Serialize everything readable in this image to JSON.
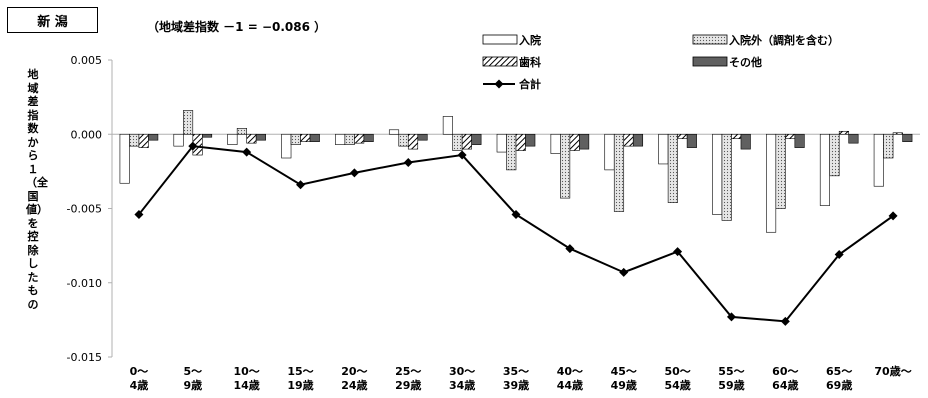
{
  "region": "新 潟",
  "subtitle": "（地域差指数 －1 = −0.086 ）",
  "colors": {
    "inpatient": "#ffffff",
    "outpatient": "#dcdcdc",
    "dental": "#ffffff",
    "other": "#606060",
    "total": "#000000",
    "axis": "#b0b0b0"
  },
  "chart_data": {
    "type": "bar",
    "ylabel": "地域差指数から１（全国値）を控除したもの",
    "ylim": [
      -0.015,
      0.005
    ],
    "yticks": [
      "0.005",
      "0.000",
      "-0.005",
      "-0.010",
      "-0.015"
    ],
    "ytick_values": [
      0.005,
      0.0,
      -0.005,
      -0.01,
      -0.015
    ],
    "categories": [
      [
        "0～",
        "4歳"
      ],
      [
        "5～",
        "9歳"
      ],
      [
        "10～",
        "14歳"
      ],
      [
        "15～",
        "19歳"
      ],
      [
        "20～",
        "24歳"
      ],
      [
        "25～",
        "29歳"
      ],
      [
        "30～",
        "34歳"
      ],
      [
        "35～",
        "39歳"
      ],
      [
        "40～",
        "44歳"
      ],
      [
        "45～",
        "49歳"
      ],
      [
        "50～",
        "54歳"
      ],
      [
        "55～",
        "59歳"
      ],
      [
        "60～",
        "64歳"
      ],
      [
        "65～",
        "69歳"
      ],
      [
        "70歳～",
        ""
      ]
    ],
    "series": [
      {
        "name": "入院",
        "kind": "bar",
        "values": [
          -0.0033,
          -0.0008,
          -0.0007,
          -0.0016,
          -0.0007,
          0.0003,
          0.0012,
          -0.0012,
          -0.0013,
          -0.0024,
          -0.002,
          -0.0054,
          -0.0066,
          -0.0048,
          -0.0035
        ]
      },
      {
        "name": "入院外（調剤を含む）",
        "kind": "bar",
        "values": [
          -0.0008,
          0.0016,
          0.0004,
          -0.0007,
          -0.0007,
          -0.0008,
          -0.0011,
          -0.0024,
          -0.0043,
          -0.0052,
          -0.0046,
          -0.0058,
          -0.005,
          -0.0028,
          -0.0016
        ]
      },
      {
        "name": "歯科",
        "kind": "bar",
        "values": [
          -0.0009,
          -0.0014,
          -0.0006,
          -0.0005,
          -0.0006,
          -0.001,
          -0.001,
          -0.0011,
          -0.0011,
          -0.0008,
          -0.0003,
          -0.0003,
          -0.0003,
          0.0002,
          0.0001
        ]
      },
      {
        "name": "その他",
        "kind": "bar",
        "values": [
          -0.0004,
          -0.0002,
          -0.0004,
          -0.0005,
          -0.0005,
          -0.0004,
          -0.0007,
          -0.0008,
          -0.001,
          -0.0008,
          -0.0009,
          -0.001,
          -0.0009,
          -0.0006,
          -0.0005
        ]
      },
      {
        "name": "合計",
        "kind": "line",
        "values": [
          -0.0054,
          -0.0008,
          -0.0012,
          -0.0034,
          -0.0026,
          -0.0019,
          -0.0014,
          -0.0054,
          -0.0077,
          -0.0093,
          -0.0079,
          -0.0123,
          -0.0126,
          -0.0081,
          -0.0055
        ]
      }
    ]
  }
}
